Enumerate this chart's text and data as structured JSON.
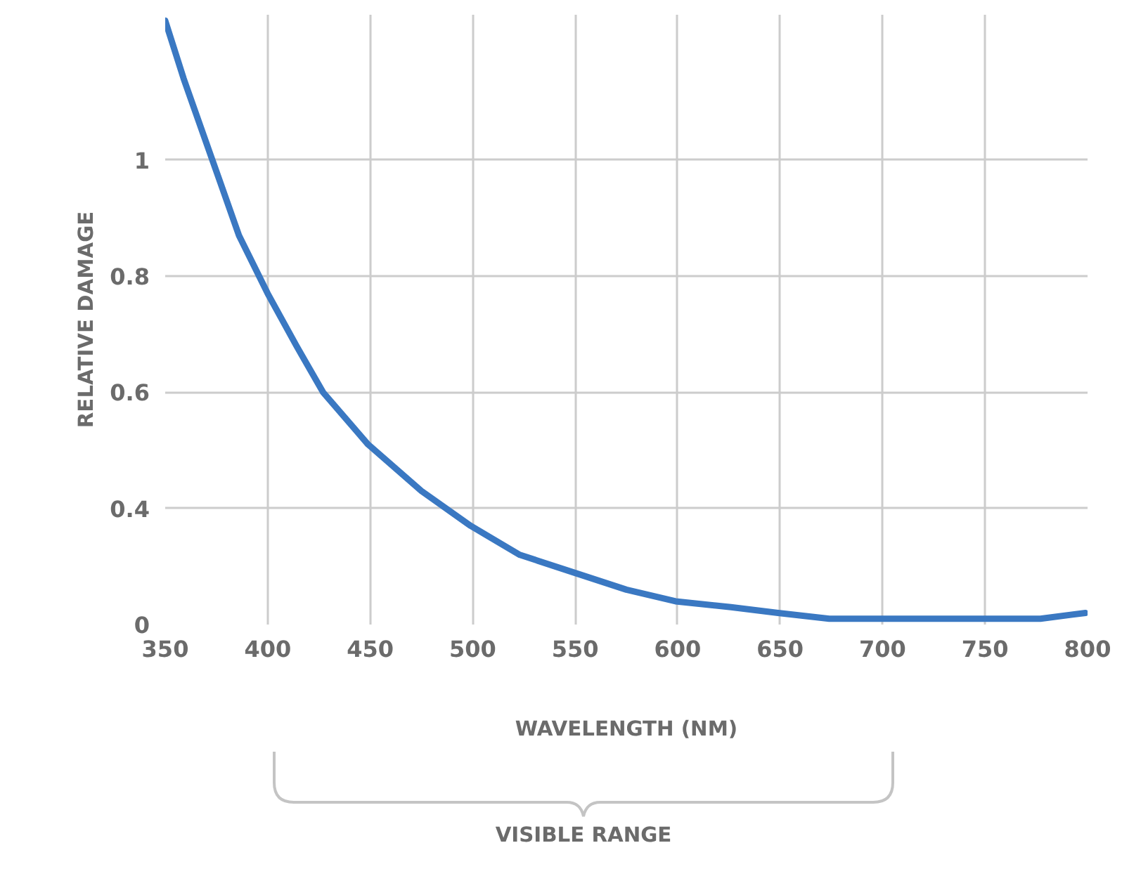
{
  "chart_data": {
    "type": "line",
    "xlabel": "WAVELENGTH (NM)",
    "ylabel": "RELATIVE DAMAGE",
    "x": [
      350,
      359,
      373,
      386,
      400,
      414,
      427,
      449,
      475,
      499,
      523,
      549,
      575,
      599,
      626,
      649,
      674,
      699,
      722,
      749,
      777,
      799
    ],
    "series": [
      {
        "color": "#3a78c2",
        "values": [
          1.24,
          1.14,
          1.0,
          0.87,
          0.77,
          0.68,
          0.6,
          0.51,
          0.43,
          0.37,
          0.32,
          0.29,
          0.26,
          0.24,
          0.23,
          0.22,
          0.21,
          0.21,
          0.21,
          0.21,
          0.21,
          0.22
        ]
      }
    ],
    "xlim": [
      350,
      800
    ],
    "ylim": [
      0.2,
      1.25
    ],
    "xticks": [
      350,
      400,
      450,
      500,
      550,
      600,
      650,
      700,
      750,
      800
    ],
    "yticks": [
      {
        "value": 0.2,
        "label": "0"
      },
      0.4,
      0.6,
      0.8,
      1
    ],
    "annotations": [
      "VISIBLE RANGE"
    ],
    "grid": true,
    "marker": "none",
    "line_style": "solid"
  }
}
